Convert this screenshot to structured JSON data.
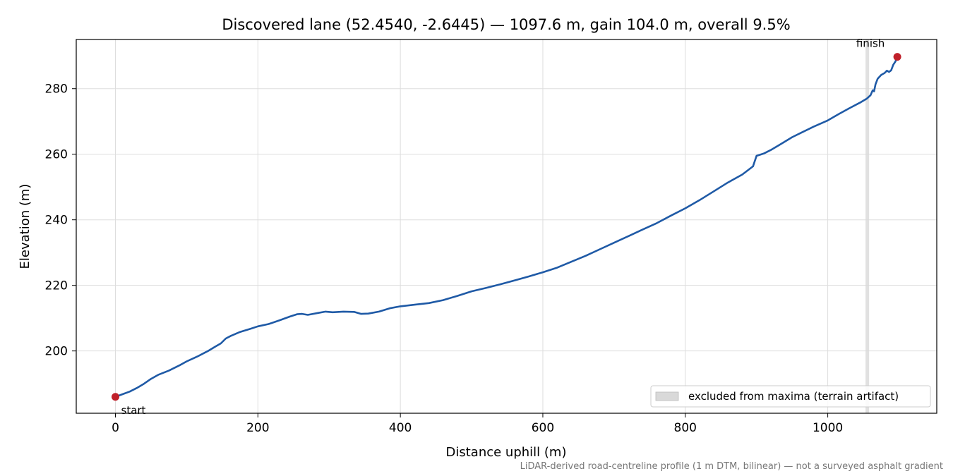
{
  "chart_data": {
    "type": "line",
    "title": "Discovered lane (52.4540, -2.6445) — 1097.6 m, gain 104.0 m, overall 9.5%",
    "xlabel": "Distance uphill (m)",
    "ylabel": "Elevation (m)",
    "xlim": [
      -55,
      1153
    ],
    "ylim": [
      181,
      295
    ],
    "x_ticks": [
      0,
      200,
      400,
      600,
      800,
      1000
    ],
    "y_ticks": [
      200,
      220,
      240,
      260,
      280
    ],
    "grid": true,
    "series": [
      {
        "color": "#1f5aa6",
        "points": [
          [
            0,
            186.0
          ],
          [
            10,
            186.8
          ],
          [
            20,
            187.6
          ],
          [
            30,
            188.7
          ],
          [
            40,
            190.0
          ],
          [
            50,
            191.5
          ],
          [
            60,
            192.7
          ],
          [
            75,
            194.0
          ],
          [
            90,
            195.6
          ],
          [
            100,
            196.8
          ],
          [
            115,
            198.3
          ],
          [
            130,
            200.0
          ],
          [
            140,
            201.3
          ],
          [
            148,
            202.3
          ],
          [
            155,
            203.8
          ],
          [
            162,
            204.6
          ],
          [
            175,
            205.8
          ],
          [
            190,
            206.8
          ],
          [
            200,
            207.5
          ],
          [
            215,
            208.2
          ],
          [
            230,
            209.3
          ],
          [
            245,
            210.5
          ],
          [
            255,
            211.2
          ],
          [
            262,
            211.3
          ],
          [
            270,
            211.0
          ],
          [
            285,
            211.6
          ],
          [
            295,
            212.0
          ],
          [
            305,
            211.8
          ],
          [
            320,
            212.0
          ],
          [
            335,
            211.9
          ],
          [
            345,
            211.3
          ],
          [
            355,
            211.4
          ],
          [
            370,
            212.0
          ],
          [
            385,
            213.0
          ],
          [
            400,
            213.6
          ],
          [
            420,
            214.1
          ],
          [
            440,
            214.6
          ],
          [
            460,
            215.5
          ],
          [
            480,
            216.8
          ],
          [
            500,
            218.2
          ],
          [
            520,
            219.2
          ],
          [
            540,
            220.3
          ],
          [
            560,
            221.5
          ],
          [
            580,
            222.7
          ],
          [
            600,
            224.0
          ],
          [
            620,
            225.4
          ],
          [
            640,
            227.2
          ],
          [
            660,
            229.0
          ],
          [
            680,
            231.0
          ],
          [
            700,
            233.0
          ],
          [
            720,
            235.0
          ],
          [
            740,
            237.0
          ],
          [
            760,
            239.0
          ],
          [
            780,
            241.3
          ],
          [
            800,
            243.5
          ],
          [
            820,
            246.0
          ],
          [
            840,
            248.7
          ],
          [
            860,
            251.4
          ],
          [
            880,
            253.8
          ],
          [
            895,
            256.3
          ],
          [
            900,
            259.5
          ],
          [
            910,
            260.2
          ],
          [
            920,
            261.3
          ],
          [
            935,
            263.2
          ],
          [
            950,
            265.2
          ],
          [
            965,
            266.8
          ],
          [
            980,
            268.4
          ],
          [
            1000,
            270.3
          ],
          [
            1015,
            272.2
          ],
          [
            1030,
            274.0
          ],
          [
            1045,
            275.7
          ],
          [
            1055,
            277.0
          ],
          [
            1060,
            278.0
          ],
          [
            1063,
            279.5
          ],
          [
            1065,
            279.2
          ],
          [
            1067,
            281.3
          ],
          [
            1070,
            283.0
          ],
          [
            1075,
            284.2
          ],
          [
            1080,
            284.8
          ],
          [
            1083,
            285.5
          ],
          [
            1086,
            285.1
          ],
          [
            1089,
            285.6
          ],
          [
            1092,
            287.3
          ],
          [
            1095,
            288.3
          ],
          [
            1097.6,
            289.7
          ]
        ]
      }
    ],
    "markers": [
      {
        "x": 0,
        "y": 186.0,
        "label": "start",
        "color": "#c0202a"
      },
      {
        "x": 1097.6,
        "y": 289.7,
        "label": "finish",
        "color": "#c0202a"
      }
    ],
    "shaded_band": {
      "x0": 1053,
      "x1": 1058,
      "color": "#d9d9d9"
    },
    "legend": {
      "position": "bottom-right",
      "entries": [
        "excluded from maxima (terrain artifact)"
      ]
    },
    "footnote": "LiDAR-derived road-centreline profile (1 m DTM, bilinear) — not a surveyed asphalt gradient"
  }
}
